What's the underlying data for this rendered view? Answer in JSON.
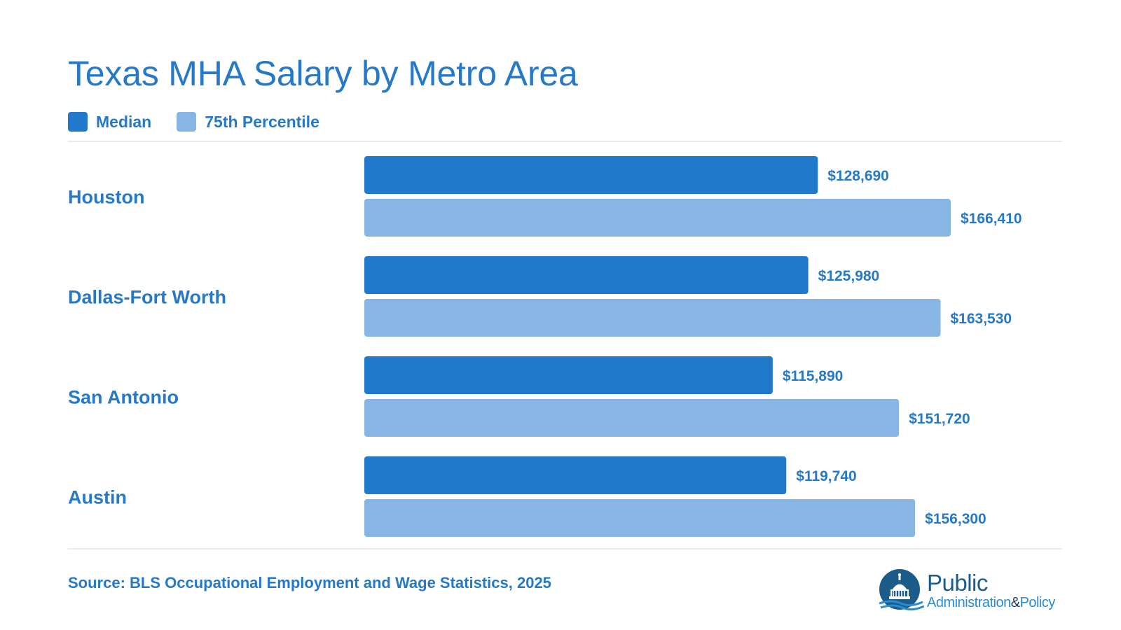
{
  "title": "Texas MHA Salary by Metro Area",
  "legend": [
    {
      "label": "Median",
      "color": "#2179cc"
    },
    {
      "label": "75th Percentile",
      "color": "#88b6e4"
    }
  ],
  "chart_data": {
    "type": "bar",
    "orientation": "horizontal",
    "title": "Texas MHA Salary by Metro Area",
    "categories": [
      "Houston",
      "Dallas-Fort Worth",
      "San Antonio",
      "Austin"
    ],
    "series": [
      {
        "name": "Median",
        "color": "#2179cc",
        "values": [
          128690,
          125980,
          115890,
          119740
        ],
        "labels": [
          "$128,690",
          "$125,980",
          "$115,890",
          "$119,740"
        ]
      },
      {
        "name": "75th Percentile",
        "color": "#88b6e4",
        "values": [
          166410,
          163530,
          151720,
          156300
        ],
        "labels": [
          "$166,410",
          "$163,530",
          "$151,720",
          "$156,300"
        ]
      }
    ],
    "xlim": [
      0,
      170000
    ],
    "grid": false,
    "legend_position": "top-left"
  },
  "source": "Source: BLS Occupational Employment and Wage Statistics, 2025",
  "logo": {
    "line1": "Public",
    "line2_part1": "Administration",
    "line2_amp": "&",
    "line2_part2": "Policy",
    "icon": "capitol-dome-icon"
  }
}
